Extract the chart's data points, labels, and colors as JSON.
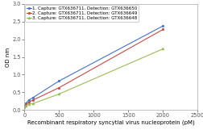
{
  "title": "",
  "xlabel": "Recombinant respiratory syncytial virus nucleoprotein (pM)",
  "ylabel": "OD nm",
  "xlim": [
    0,
    2500
  ],
  "ylim": [
    0,
    3
  ],
  "yticks": [
    0,
    0.5,
    1,
    1.5,
    2,
    2.5,
    3
  ],
  "xticks": [
    0,
    500,
    1000,
    1500,
    2000,
    2500
  ],
  "series": [
    {
      "label": "1. Capture: GTX636711, Detection: GTX636650",
      "x": [
        0,
        16,
        63,
        125,
        500,
        2000
      ],
      "y": [
        0.1,
        0.18,
        0.28,
        0.35,
        0.82,
        2.38
      ],
      "color": "#4472C4",
      "marker": "s",
      "linestyle": "-"
    },
    {
      "label": "2. Capture: GTX636711, Detection: GTX636649",
      "x": [
        0,
        16,
        63,
        125,
        500,
        2000
      ],
      "y": [
        0.1,
        0.15,
        0.22,
        0.28,
        0.63,
        2.28
      ],
      "color": "#BE4B48",
      "marker": "s",
      "linestyle": "-"
    },
    {
      "label": "3. Capture: GTX636711, Detection: GTX636648",
      "x": [
        0,
        16,
        63,
        125,
        500,
        2000
      ],
      "y": [
        0.08,
        0.12,
        0.16,
        0.18,
        0.45,
        1.73
      ],
      "color": "#9BBB59",
      "marker": "^",
      "linestyle": "-"
    }
  ],
  "background_color": "#FFFFFF",
  "legend_fontsize": 4.0,
  "axis_label_fontsize": 5.0,
  "tick_fontsize": 4.8
}
